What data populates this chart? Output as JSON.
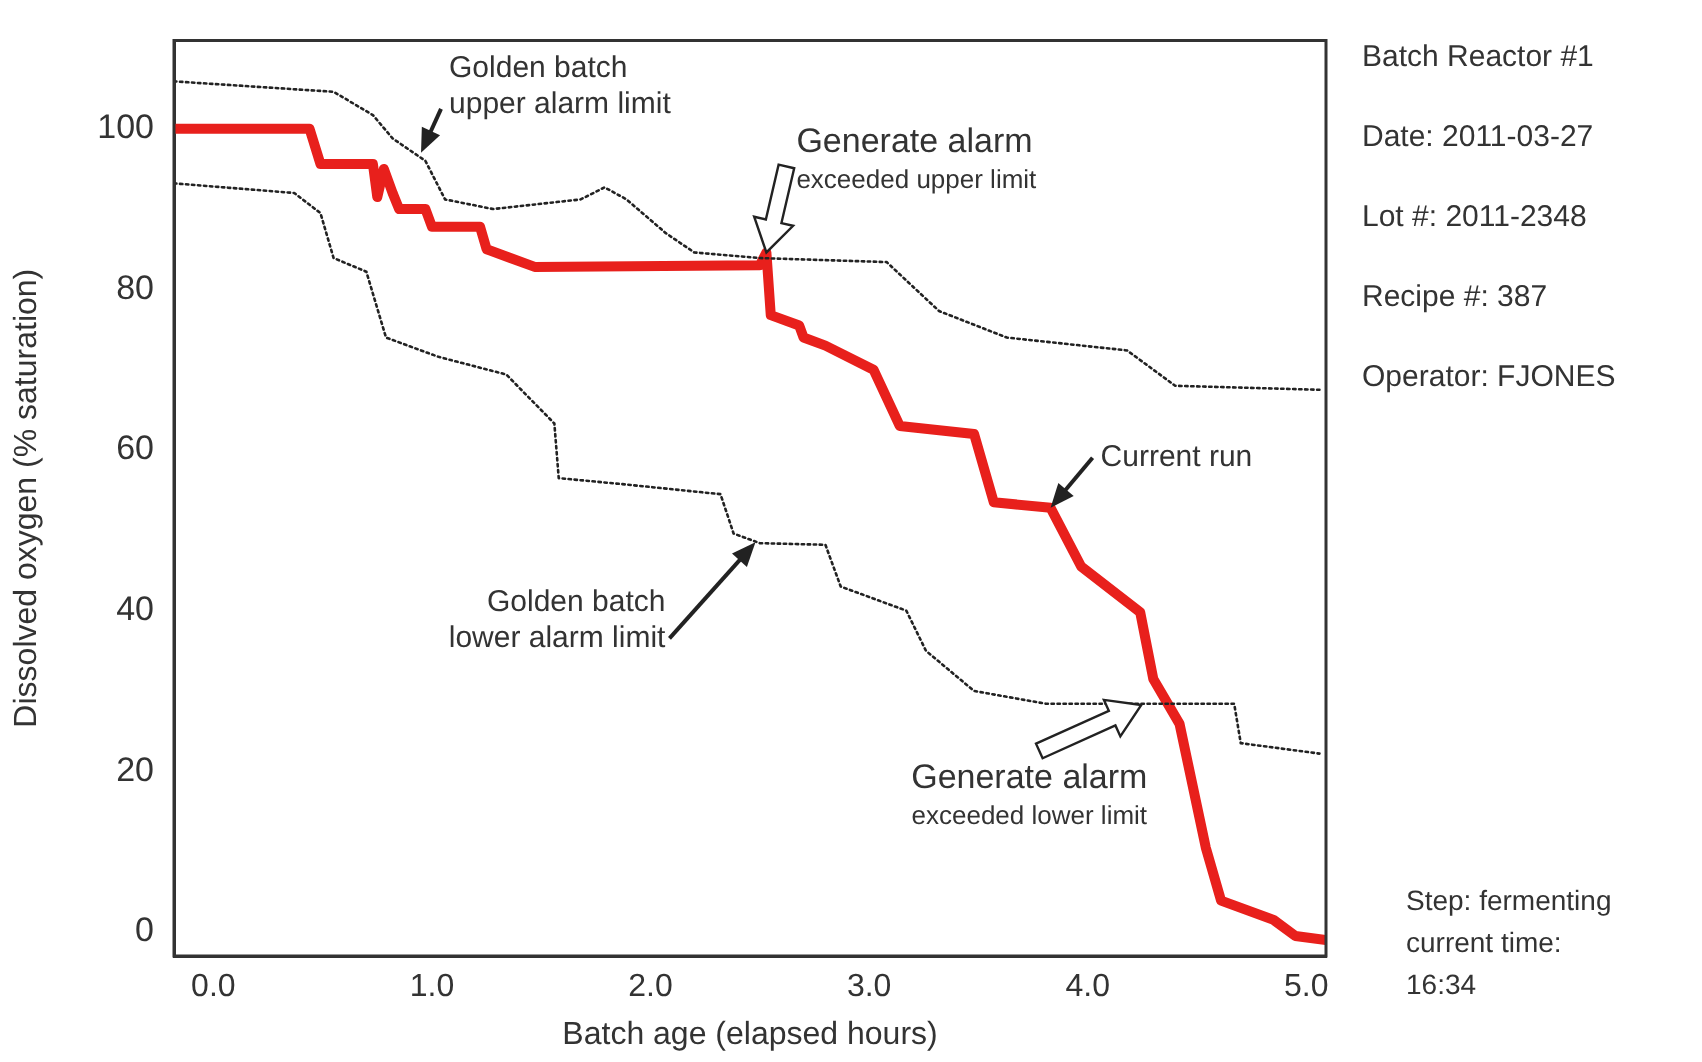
{
  "chart_data": {
    "type": "line",
    "xlabel": "Batch age (elapsed hours)",
    "ylabel": "Dissolved oxygen (% saturation)",
    "xlim": [
      -0.18,
      5.09
    ],
    "ylim": [
      -3,
      111
    ],
    "xticks": [
      {
        "value": 0,
        "label": "0.0"
      },
      {
        "value": 1,
        "label": "1.0"
      },
      {
        "value": 2,
        "label": "2.0"
      },
      {
        "value": 3,
        "label": "3.0"
      },
      {
        "value": 4,
        "label": "4.0"
      },
      {
        "value": 5,
        "label": "5.0"
      }
    ],
    "yticks": [
      0,
      20,
      40,
      60,
      80,
      100
    ],
    "grid": false,
    "legend": false,
    "marker": "none",
    "series": [
      {
        "color": "#222222",
        "line_style": "dotted",
        "x": [
          -0.18,
          0.55,
          0.73,
          0.82,
          0.97,
          1.06,
          1.28,
          1.68,
          1.79,
          1.89,
          2.07,
          2.2,
          2.5,
          3.08,
          3.32,
          3.63,
          4.18,
          4.4,
          5.06
        ],
        "values": [
          105.9,
          104.6,
          101.7,
          98.8,
          96,
          91.2,
          90,
          91.2,
          92.7,
          91.2,
          87,
          84.6,
          83.9,
          83.4,
          77.3,
          74,
          72.4,
          68,
          67.5
        ]
      },
      {
        "color": "#222222",
        "line_style": "dotted",
        "x": [
          -0.18,
          0.37,
          0.49,
          0.55,
          0.7,
          0.79,
          1.03,
          1.34,
          1.56,
          1.58,
          1.89,
          2.32,
          2.38,
          2.5,
          2.8,
          2.87,
          3.17,
          3.26,
          3.48,
          3.81,
          4.67,
          4.7,
          5.06
        ],
        "values": [
          93.2,
          92,
          89.5,
          83.9,
          82.2,
          74,
          71.6,
          69.4,
          63.3,
          56.5,
          55.7,
          54.5,
          49.6,
          48.4,
          48.2,
          43,
          40,
          35,
          30,
          28.4,
          28.4,
          23.5,
          22.2
        ]
      },
      {
        "color": "#e8201c",
        "line_style": "solid",
        "x": [
          -0.18,
          0.44,
          0.49,
          0.73,
          0.75,
          0.78,
          0.82,
          0.85,
          0.97,
          1.0,
          1.22,
          1.25,
          1.47,
          2.5,
          2.53,
          2.55,
          2.68,
          2.7,
          2.8,
          3.02,
          3.14,
          3.48,
          3.57,
          3.83,
          3.97,
          4.24,
          4.3,
          4.42,
          4.54,
          4.61,
          4.85,
          4.95,
          5.09
        ],
        "values": [
          100,
          100,
          95.6,
          95.6,
          91.5,
          95,
          92,
          90,
          90,
          87.8,
          87.8,
          85,
          82.8,
          83,
          84.6,
          76.8,
          75.5,
          74,
          73,
          70,
          63,
          62,
          53.5,
          52.8,
          45.5,
          39.8,
          31.5,
          25.9,
          10.5,
          3.9,
          1.5,
          -0.5,
          -1
        ]
      }
    ],
    "annotations": [
      {
        "text": "Golden batch\nupper alarm limit",
        "x": 0.95,
        "y": 97
      },
      {
        "text": "Generate alarm\nexceeded upper limit",
        "x": 2.53,
        "y": 84.6
      },
      {
        "text": "Current run",
        "x": 3.83,
        "y": 52.8
      },
      {
        "text": "Golden batch\nlower alarm limit",
        "x": 2.48,
        "y": 48.5
      },
      {
        "text": "Generate alarm\nexceeded lower limit",
        "x": 4.3,
        "y": 29
      },
      "Batch Reactor #1",
      "Date: 2011-03-27",
      "Lot #: 2011-2348",
      "Recipe #: 387",
      "Operator: FJONES",
      "Step: fermenting\ncurrent time:\n16:34"
    ]
  }
}
